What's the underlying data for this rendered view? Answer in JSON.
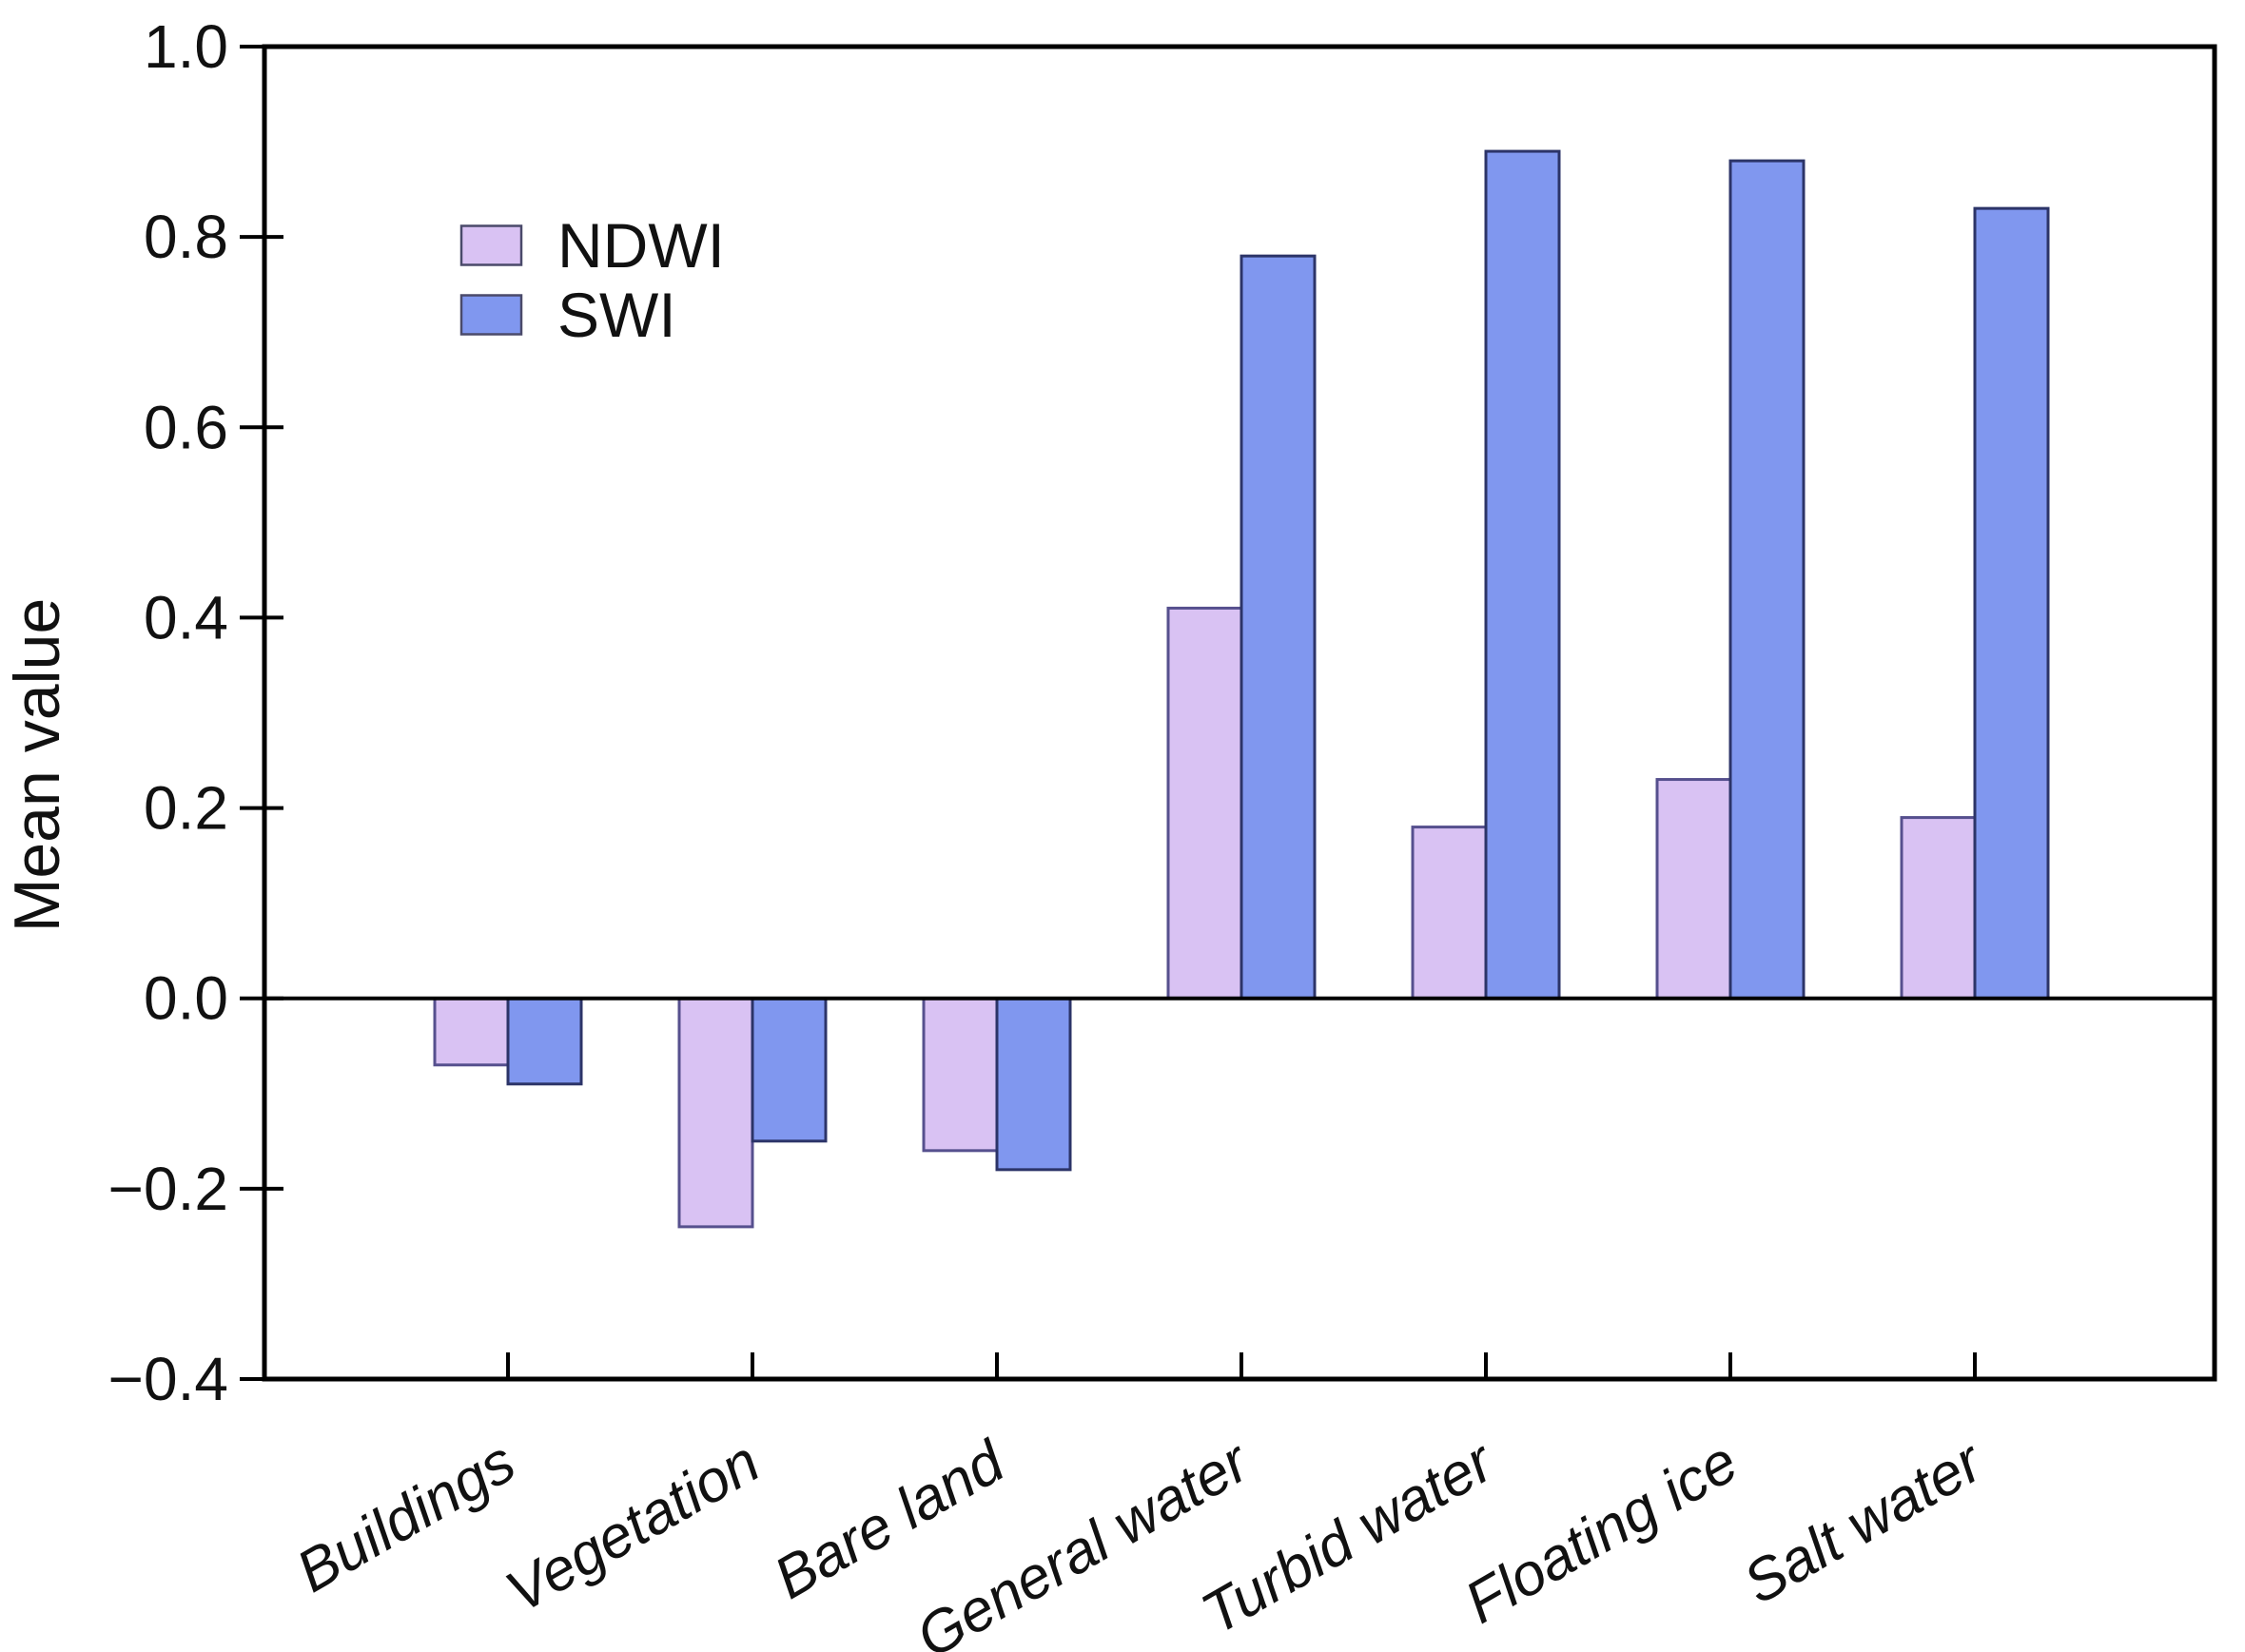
{
  "chart_data": {
    "type": "bar",
    "title": "",
    "xlabel": "",
    "ylabel": "Mean value",
    "categories": [
      "Buildings",
      "Vegetation",
      "Bare land",
      "General water",
      "Turbid water",
      "Floating ice",
      "Salt water"
    ],
    "series": [
      {
        "name": "NDWI",
        "values": [
          -0.07,
          -0.24,
          -0.16,
          0.41,
          0.18,
          0.23,
          0.19
        ],
        "fill_color": "#d9c2f3",
        "edge_color": "#56508e"
      },
      {
        "name": "SWI",
        "values": [
          -0.09,
          -0.15,
          -0.18,
          0.78,
          0.89,
          0.88,
          0.83
        ],
        "fill_color": "#8097ef",
        "edge_color": "#2c3468"
      }
    ],
    "ylim": [
      -0.4,
      1.0
    ],
    "ytick_step": 0.2,
    "ytick_labels": [
      "1.0",
      "0.8",
      "0.6",
      "0.4",
      "0.2",
      "0.0",
      "−0.2",
      "−0.4"
    ],
    "grid": false,
    "zero_line": true,
    "legend_position": "upper-left-inside",
    "legend_entries": [
      "NDWI",
      "SWI"
    ],
    "axis_color": "#000000",
    "background_color": "#ffffff"
  }
}
